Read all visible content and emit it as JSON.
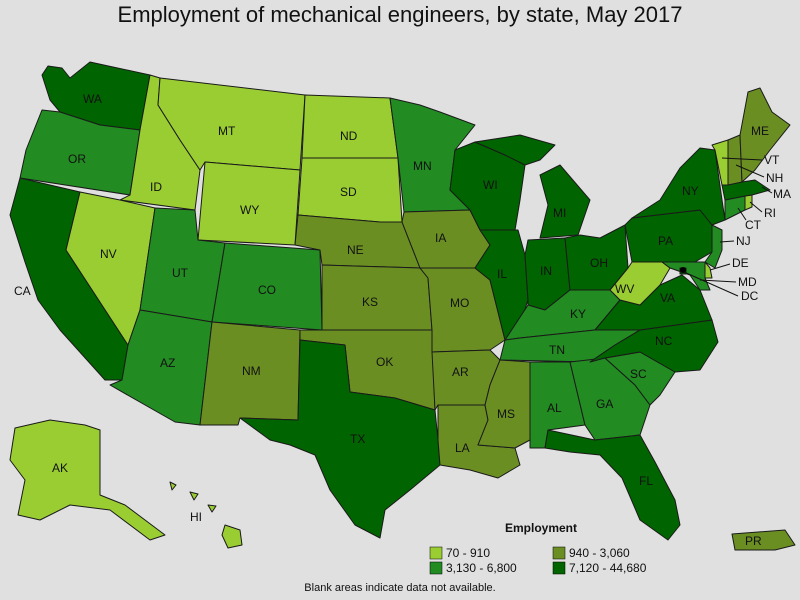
{
  "title": "Employment of mechanical engineers, by state, May 2017",
  "footnote": "Blank areas indicate data not available.",
  "legend": {
    "title": "Employment",
    "classes": [
      {
        "label": "70 - 910",
        "color": "#9acd32"
      },
      {
        "label": "940 - 3,060",
        "color": "#6b8e23"
      },
      {
        "label": "3,130 - 6,800",
        "color": "#228b22"
      },
      {
        "label": "7,120 - 44,680",
        "color": "#006400"
      }
    ]
  },
  "states": [
    {
      "abbr": "WA",
      "class": 3
    },
    {
      "abbr": "OR",
      "class": 2
    },
    {
      "abbr": "CA",
      "class": 3
    },
    {
      "abbr": "ID",
      "class": 0
    },
    {
      "abbr": "NV",
      "class": 0
    },
    {
      "abbr": "MT",
      "class": 0
    },
    {
      "abbr": "WY",
      "class": 0
    },
    {
      "abbr": "UT",
      "class": 2
    },
    {
      "abbr": "AZ",
      "class": 2
    },
    {
      "abbr": "CO",
      "class": 2
    },
    {
      "abbr": "NM",
      "class": 1
    },
    {
      "abbr": "ND",
      "class": 0
    },
    {
      "abbr": "SD",
      "class": 0
    },
    {
      "abbr": "NE",
      "class": 1
    },
    {
      "abbr": "KS",
      "class": 1
    },
    {
      "abbr": "OK",
      "class": 1
    },
    {
      "abbr": "TX",
      "class": 3
    },
    {
      "abbr": "MN",
      "class": 2
    },
    {
      "abbr": "IA",
      "class": 1
    },
    {
      "abbr": "MO",
      "class": 1
    },
    {
      "abbr": "AR",
      "class": 1
    },
    {
      "abbr": "LA",
      "class": 1
    },
    {
      "abbr": "WI",
      "class": 3
    },
    {
      "abbr": "IL",
      "class": 3
    },
    {
      "abbr": "MI",
      "class": 3
    },
    {
      "abbr": "IN",
      "class": 3
    },
    {
      "abbr": "OH",
      "class": 3
    },
    {
      "abbr": "KY",
      "class": 2
    },
    {
      "abbr": "TN",
      "class": 2
    },
    {
      "abbr": "MS",
      "class": 1
    },
    {
      "abbr": "AL",
      "class": 2
    },
    {
      "abbr": "GA",
      "class": 2
    },
    {
      "abbr": "FL",
      "class": 3
    },
    {
      "abbr": "SC",
      "class": 2
    },
    {
      "abbr": "NC",
      "class": 3
    },
    {
      "abbr": "VA",
      "class": 3
    },
    {
      "abbr": "WV",
      "class": 0
    },
    {
      "abbr": "PA",
      "class": 3
    },
    {
      "abbr": "NY",
      "class": 3
    },
    {
      "abbr": "NJ",
      "class": 2
    },
    {
      "abbr": "DE",
      "class": 0
    },
    {
      "abbr": "MD",
      "class": 2
    },
    {
      "abbr": "DC",
      "class": 3
    },
    {
      "abbr": "CT",
      "class": 2
    },
    {
      "abbr": "RI",
      "class": 0
    },
    {
      "abbr": "MA",
      "class": 3
    },
    {
      "abbr": "VT",
      "class": 0
    },
    {
      "abbr": "NH",
      "class": 1
    },
    {
      "abbr": "ME",
      "class": 1
    },
    {
      "abbr": "AK",
      "class": 0
    },
    {
      "abbr": "HI",
      "class": 0
    },
    {
      "abbr": "PR",
      "class": 1
    }
  ]
}
